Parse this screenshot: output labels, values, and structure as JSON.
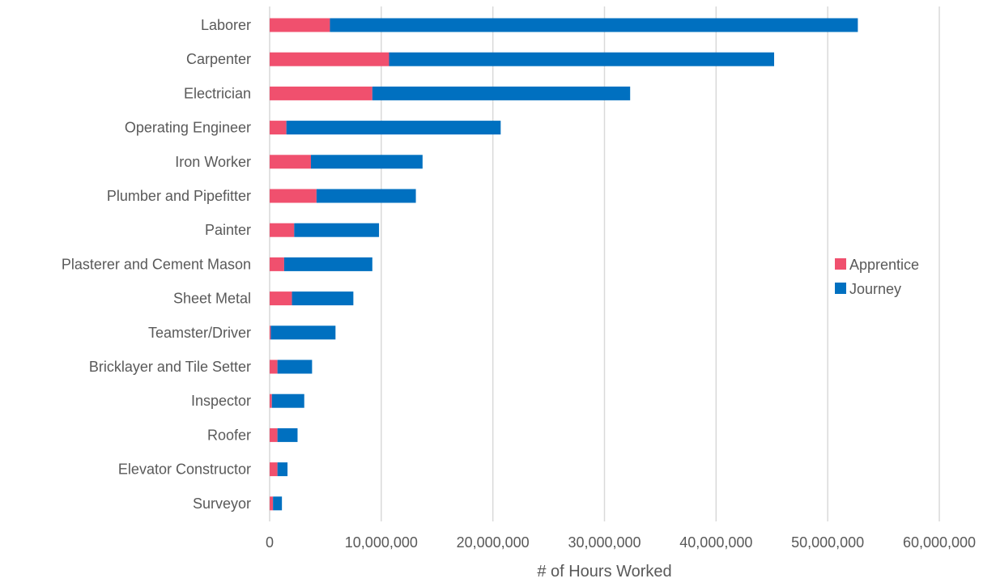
{
  "chart_data": {
    "type": "bar",
    "orientation": "horizontal",
    "stacked": true,
    "title": "",
    "xlabel": "# of Hours Worked",
    "ylabel": "",
    "xlim": [
      0,
      60000000
    ],
    "xticks": [
      0,
      10000000,
      20000000,
      30000000,
      40000000,
      50000000,
      60000000
    ],
    "xtick_labels": [
      "0",
      "10,000,000",
      "20,000,000",
      "30,000,000",
      "40,000,000",
      "50,000,000",
      "60,000,000"
    ],
    "grid": "vertical",
    "legend_position": "right",
    "categories": [
      "Laborer",
      "Carpenter",
      "Electrician",
      "Operating Engineer",
      "Iron Worker",
      "Plumber and Pipefitter",
      "Painter",
      "Plasterer and Cement Mason",
      "Sheet Metal",
      "Teamster/Driver",
      "Bricklayer and Tile Setter",
      "Inspector",
      "Roofer",
      "Elevator Constructor",
      "Surveyor"
    ],
    "series": [
      {
        "name": "Apprentice",
        "color": "#F0506E",
        "values": [
          5400000,
          10700000,
          9200000,
          1500000,
          3700000,
          4200000,
          2200000,
          1300000,
          2000000,
          100000,
          700000,
          200000,
          700000,
          700000,
          300000
        ]
      },
      {
        "name": "Journey",
        "color": "#0070C0",
        "values": [
          47300000,
          34500000,
          23100000,
          19200000,
          10000000,
          8900000,
          7600000,
          7900000,
          5500000,
          5800000,
          3100000,
          2900000,
          1800000,
          900000,
          800000
        ]
      }
    ]
  }
}
